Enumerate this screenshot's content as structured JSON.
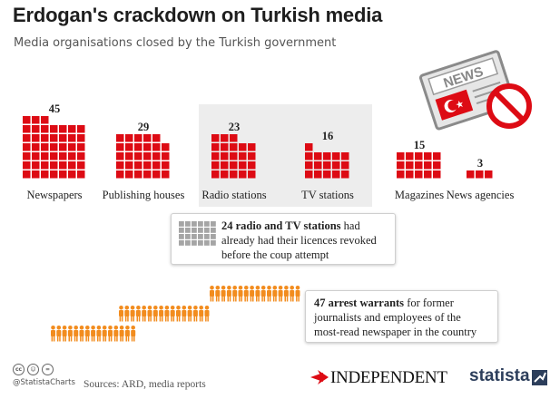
{
  "title": "Erdogan's crackdown on Turkish media",
  "subtitle": "Media organisations closed by the Turkish government",
  "colors": {
    "accent": "#dd0b14",
    "grey_square": "#a5a5a5",
    "person": "#f28c1e",
    "shade": "#ededed"
  },
  "chart_data": {
    "type": "bar",
    "categories": [
      "Newspapers",
      "Publishing houses",
      "Radio stations",
      "TV stations",
      "Magazines",
      "News agencies"
    ],
    "values": [
      45,
      29,
      23,
      16,
      15,
      3
    ],
    "title": "Erdogan's crackdown on Turkish media",
    "subtitle": "Media organisations closed by the Turkish government",
    "unit_per_icon": 1
  },
  "callouts": {
    "licences": {
      "count": 24,
      "bold": "24 radio and TV stations",
      "line1_rest": " had",
      "line2": "already had their licences revoked",
      "line3": "before the coup attempt"
    },
    "warrants": {
      "count": 47,
      "bold": "47 arrest warrants",
      "line1_rest": " for former",
      "line2": "journalists and employees of the",
      "line3": "most-read newspaper in the country"
    }
  },
  "illustration": {
    "sign_text": "NEWS",
    "icons": [
      "newspaper-icon",
      "prohibited-icon",
      "turkish-flag-icon"
    ]
  },
  "footer": {
    "handle": "@StatistaCharts",
    "sources": "Sources: ARD, media reports",
    "cc_icons": [
      "cc",
      "by",
      "nd"
    ],
    "logo_independent": "INDEPENDENT",
    "logo_statista": "statista"
  }
}
